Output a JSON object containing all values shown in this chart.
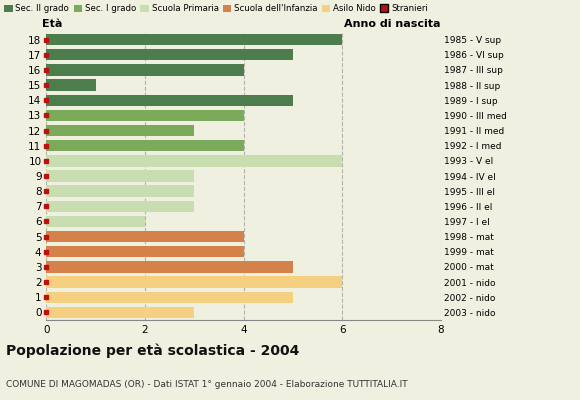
{
  "ages": [
    18,
    17,
    16,
    15,
    14,
    13,
    12,
    11,
    10,
    9,
    8,
    7,
    6,
    5,
    4,
    3,
    2,
    1,
    0
  ],
  "values": [
    6,
    5,
    4,
    1,
    5,
    4,
    3,
    4,
    6,
    3,
    3,
    3,
    2,
    4,
    4,
    5,
    6,
    5,
    3
  ],
  "anno_nascita": [
    "1985 - V sup",
    "1986 - VI sup",
    "1987 - III sup",
    "1988 - II sup",
    "1989 - I sup",
    "1990 - III med",
    "1991 - II med",
    "1992 - I med",
    "1993 - V el",
    "1994 - IV el",
    "1995 - III el",
    "1996 - II el",
    "1997 - I el",
    "1998 - mat",
    "1999 - mat",
    "2000 - mat",
    "2001 - nido",
    "2002 - nido",
    "2003 - nido"
  ],
  "bar_colors": [
    "#4d7c4d",
    "#4d7c4d",
    "#4d7c4d",
    "#4d7c4d",
    "#4d7c4d",
    "#7aaa5a",
    "#7aaa5a",
    "#7aaa5a",
    "#c8ddb0",
    "#c8ddb0",
    "#c8ddb0",
    "#c8ddb0",
    "#c8ddb0",
    "#d4824a",
    "#d4824a",
    "#d4824a",
    "#f5d080",
    "#f5d080",
    "#f5d080"
  ],
  "stranger_color": "#bb1111",
  "title": "Popolazione per età scolastica - 2004",
  "subtitle": "COMUNE DI MAGOMADAS (OR) - Dati ISTAT 1° gennaio 2004 - Elaborazione TUTTITALIA.IT",
  "ylabel": "Età",
  "right_label": "Anno di nascita",
  "xlim": [
    0,
    8
  ],
  "xticks": [
    0,
    2,
    4,
    6,
    8
  ],
  "legend_labels": [
    "Sec. II grado",
    "Sec. I grado",
    "Scuola Primaria",
    "Scuola dell'Infanzia",
    "Asilo Nido",
    "Stranieri"
  ],
  "legend_colors": [
    "#4d7c4d",
    "#7aaa5a",
    "#c8ddb0",
    "#d4824a",
    "#f5d080",
    "#bb1111"
  ],
  "background_color": "#f0f0e0"
}
